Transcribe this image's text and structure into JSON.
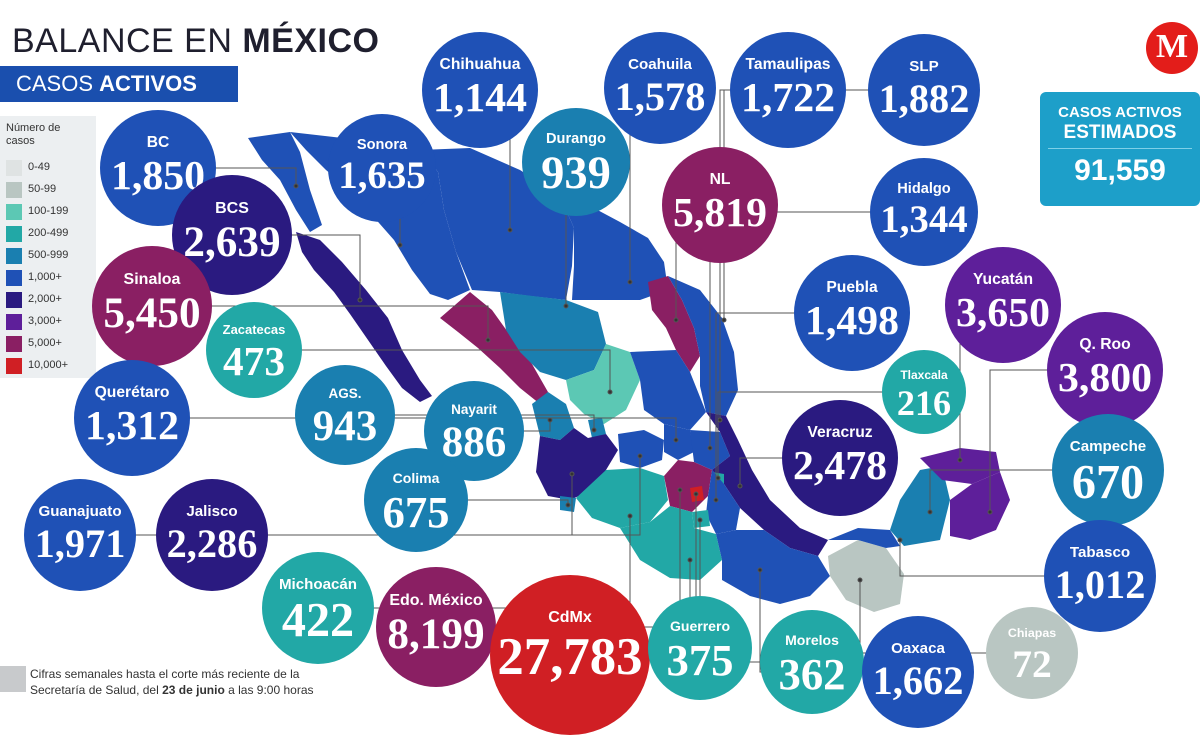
{
  "header": {
    "title_plain": "BALANCE EN ",
    "title_bold": "MÉXICO",
    "subtitle_plain": "CASOS ",
    "subtitle_bold": "ACTIVOS"
  },
  "legend": {
    "title": "Número de casos",
    "items": [
      {
        "label": "0-49",
        "color": "#dfe3e3"
      },
      {
        "label": "50-99",
        "color": "#b9c6c2"
      },
      {
        "label": "100-199",
        "color": "#5cc8b4"
      },
      {
        "label": "200-499",
        "color": "#22a8a6"
      },
      {
        "label": "500-999",
        "color": "#1a7fb0"
      },
      {
        "label": "1,000+",
        "color": "#1f51b6"
      },
      {
        "label": "2,000+",
        "color": "#2a1a80"
      },
      {
        "label": "3,000+",
        "color": "#5e1f9a"
      },
      {
        "label": "5,000+",
        "color": "#8a1f63"
      },
      {
        "label": "10,000+",
        "color": "#d01f24"
      }
    ]
  },
  "estimate": {
    "line1": "CASOS ACTIVOS",
    "line2": "ESTIMADOS",
    "value": "91,559",
    "color": "#1d9fc9"
  },
  "logo": {
    "letter": "M",
    "color": "#e31d1a"
  },
  "footnote": {
    "part1": "Cifras semanales hasta el corte más reciente de la Secretaría de Salud, del ",
    "bold": "23 de junio",
    "part2": " a las 9:00 horas"
  },
  "states": [
    {
      "name": "Chihuahua",
      "value": "1,144",
      "color": "#1f51b6"
    },
    {
      "name": "Coahuila",
      "value": "1,578",
      "color": "#1f51b6"
    },
    {
      "name": "Tamaulipas",
      "value": "1,722",
      "color": "#1f51b6"
    },
    {
      "name": "SLP",
      "value": "1,882",
      "color": "#1f51b6"
    },
    {
      "name": "BC",
      "value": "1,850",
      "color": "#1f51b6"
    },
    {
      "name": "Sonora",
      "value": "1,635",
      "color": "#1f51b6"
    },
    {
      "name": "Durango",
      "value": "939",
      "color": "#1a7fb0"
    },
    {
      "name": "NL",
      "value": "5,819",
      "color": "#8a1f63"
    },
    {
      "name": "Hidalgo",
      "value": "1,344",
      "color": "#1f51b6"
    },
    {
      "name": "BCS",
      "value": "2,639",
      "color": "#2a1a80"
    },
    {
      "name": "Sinaloa",
      "value": "5,450",
      "color": "#8a1f63"
    },
    {
      "name": "Yucatán",
      "value": "3,650",
      "color": "#5e1f9a"
    },
    {
      "name": "Puebla",
      "value": "1,498",
      "color": "#1f51b6"
    },
    {
      "name": "Zacatecas",
      "value": "473",
      "color": "#22a8a6"
    },
    {
      "name": "Q. Roo",
      "value": "3,800",
      "color": "#5e1f9a"
    },
    {
      "name": "Tlaxcala",
      "value": "216",
      "color": "#22a8a6"
    },
    {
      "name": "AGS.",
      "value": "943",
      "color": "#1a7fb0"
    },
    {
      "name": "Querétaro",
      "value": "1,312",
      "color": "#1f51b6"
    },
    {
      "name": "Nayarit",
      "value": "886",
      "color": "#1a7fb0"
    },
    {
      "name": "Veracruz",
      "value": "2,478",
      "color": "#2a1a80"
    },
    {
      "name": "Campeche",
      "value": "670",
      "color": "#1a7fb0"
    },
    {
      "name": "Colima",
      "value": "675",
      "color": "#1a7fb0"
    },
    {
      "name": "Guanajuato",
      "value": "1,971",
      "color": "#1f51b6"
    },
    {
      "name": "Jalisco",
      "value": "2,286",
      "color": "#2a1a80"
    },
    {
      "name": "Tabasco",
      "value": "1,012",
      "color": "#1f51b6"
    },
    {
      "name": "Michoacán",
      "value": "422",
      "color": "#22a8a6"
    },
    {
      "name": "Edo. México",
      "value": "8,199",
      "color": "#8a1f63"
    },
    {
      "name": "CdMx",
      "value": "27,783",
      "color": "#d01f24"
    },
    {
      "name": "Guerrero",
      "value": "375",
      "color": "#22a8a6"
    },
    {
      "name": "Morelos",
      "value": "362",
      "color": "#22a8a6"
    },
    {
      "name": "Oaxaca",
      "value": "1,662",
      "color": "#1f51b6"
    },
    {
      "name": "Chiapas",
      "value": "72",
      "color": "#b9c6c2"
    }
  ]
}
